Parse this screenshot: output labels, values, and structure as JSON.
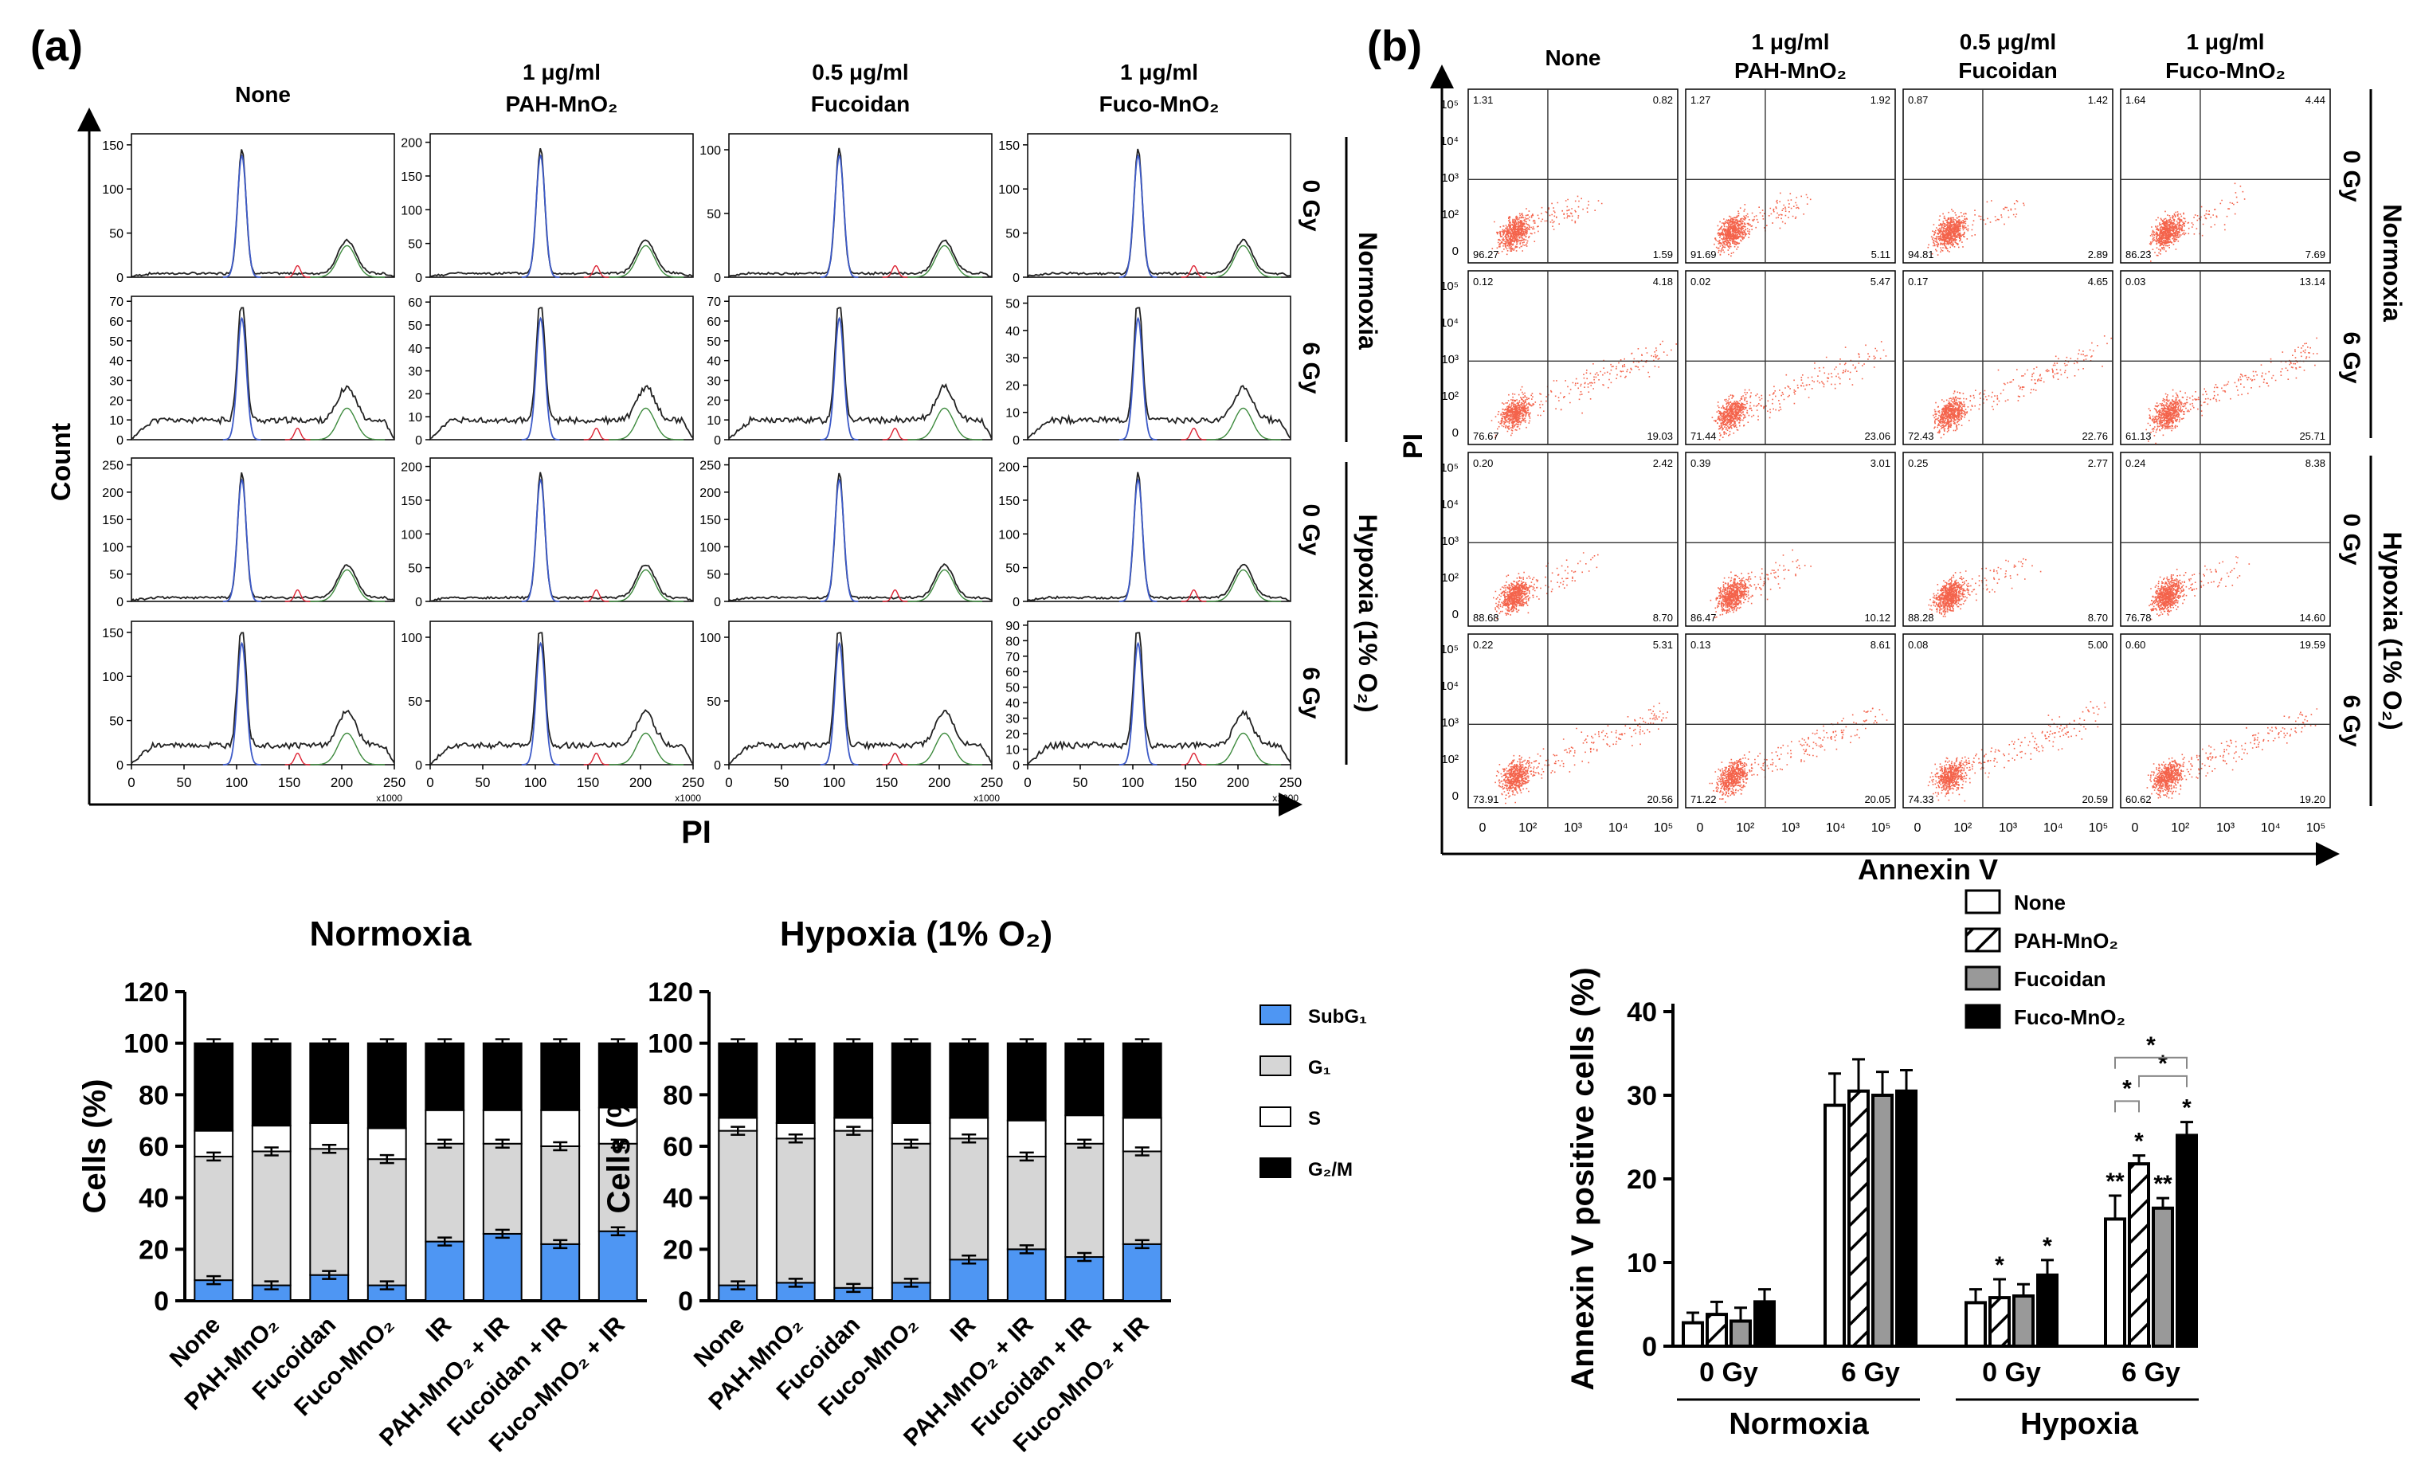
{
  "panel_a": {
    "label": "(a)",
    "columns": [
      {
        "line1": "None",
        "line2": ""
      },
      {
        "line1": "1 μg/ml",
        "line2": "PAH-MnO₂"
      },
      {
        "line1": "0.5 μg/ml",
        "line2": "Fucoidan"
      },
      {
        "line1": "1 μg/ml",
        "line2": "Fuco-MnO₂"
      }
    ],
    "rows": [
      "0 Gy",
      "6 Gy",
      "0 Gy",
      "6 Gy"
    ],
    "groups": [
      "Normoxia",
      "Hypoxia (1% O₂)"
    ],
    "ylabel": "Count",
    "xlabel": "PI",
    "x_ticks": [
      "0",
      "50",
      "100",
      "150",
      "200",
      "250"
    ],
    "x_multiplier": "x1000",
    "y_ticks": [
      [
        [
          "0",
          "50",
          "100",
          "150"
        ],
        [
          "0",
          "50",
          "100",
          "150",
          "200"
        ],
        [
          "0",
          "50",
          "100"
        ],
        [
          "0",
          "50",
          "100",
          "150"
        ]
      ],
      [
        [
          "0",
          "10",
          "20",
          "30",
          "40",
          "50",
          "60",
          "70"
        ],
        [
          "0",
          "10",
          "20",
          "30",
          "40",
          "50",
          "60"
        ],
        [
          "0",
          "10",
          "20",
          "30",
          "40",
          "50",
          "60",
          "70"
        ],
        [
          "0",
          "10",
          "20",
          "30",
          "40",
          "50"
        ]
      ],
      [
        [
          "0",
          "50",
          "100",
          "150",
          "200",
          "250"
        ],
        [
          "0",
          "50",
          "100",
          "150",
          "200"
        ],
        [
          "0",
          "50",
          "100",
          "150",
          "200",
          "250"
        ],
        [
          "0",
          "50",
          "100",
          "150",
          "200"
        ]
      ],
      [
        [
          "0",
          "50",
          "100",
          "150"
        ],
        [
          "0",
          "50",
          "100"
        ],
        [
          "0",
          "50",
          "100"
        ],
        [
          "0",
          "10",
          "20",
          "30",
          "40",
          "50",
          "60",
          "70",
          "80",
          "90"
        ]
      ]
    ]
  },
  "panel_b": {
    "label": "(b)",
    "columns": [
      {
        "line1": "None",
        "line2": ""
      },
      {
        "line1": "1 μg/ml",
        "line2": "PAH-MnO₂"
      },
      {
        "line1": "0.5 μg/ml",
        "line2": "Fucoidan"
      },
      {
        "line1": "1 μg/ml",
        "line2": "Fuco-MnO₂"
      }
    ],
    "rows": [
      "0 Gy",
      "6 Gy",
      "0 Gy",
      "6 Gy"
    ],
    "groups": [
      "Normoxia",
      "Hypoxia (1% O₂)"
    ],
    "ylabel": "PI",
    "xlabel": "Annexin V",
    "x_ticks": [
      "0",
      "10²",
      "10³",
      "10⁴",
      "10⁵"
    ],
    "y_ticks": [
      "10⁵",
      "10⁴",
      "10³",
      "10²",
      "0"
    ],
    "quadrants": [
      [
        [
          "1.31",
          "0.82",
          "96.27",
          "1.59"
        ],
        [
          "1.27",
          "1.92",
          "91.69",
          "5.11"
        ],
        [
          "0.87",
          "1.42",
          "94.81",
          "2.89"
        ],
        [
          "1.64",
          "4.44",
          "86.23",
          "7.69"
        ]
      ],
      [
        [
          "0.12",
          "4.18",
          "76.67",
          "19.03"
        ],
        [
          "0.02",
          "5.47",
          "71.44",
          "23.06"
        ],
        [
          "0.17",
          "4.65",
          "72.43",
          "22.76"
        ],
        [
          "0.03",
          "13.14",
          "61.13",
          "25.71"
        ]
      ],
      [
        [
          "0.20",
          "2.42",
          "88.68",
          "8.70"
        ],
        [
          "0.39",
          "3.01",
          "86.47",
          "10.12"
        ],
        [
          "0.25",
          "2.77",
          "88.28",
          "8.70"
        ],
        [
          "0.24",
          "8.38",
          "76.78",
          "14.60"
        ]
      ],
      [
        [
          "0.22",
          "5.31",
          "73.91",
          "20.56"
        ],
        [
          "0.13",
          "8.61",
          "71.22",
          "20.05"
        ],
        [
          "0.08",
          "5.00",
          "74.33",
          "20.59"
        ],
        [
          "0.60",
          "19.59",
          "60.62",
          "19.20"
        ]
      ]
    ]
  },
  "chart_data": [
    {
      "type": "bar",
      "stacked": true,
      "title": "Normoxia",
      "ylabel": "Cells (%)",
      "ylim": [
        0,
        120
      ],
      "y_ticks": [
        "0",
        "20",
        "40",
        "60",
        "80",
        "100",
        "120"
      ],
      "categories": [
        "None",
        "PAH-MnO₂",
        "Fucoidan",
        "Fuco-MnO₂",
        "IR",
        "PAH-MnO₂ + IR",
        "Fucoidan + IR",
        "Fuco-MnO₂ + IR"
      ],
      "series": [
        {
          "name": "SubG₁",
          "color": "#4e96f3",
          "values": [
            8,
            6,
            10,
            6,
            23,
            26,
            22,
            27
          ]
        },
        {
          "name": "G₁",
          "color": "#d6d6d6",
          "values": [
            48,
            52,
            49,
            49,
            38,
            35,
            38,
            34
          ]
        },
        {
          "name": "S",
          "color": "#ffffff",
          "values": [
            10,
            10,
            10,
            12,
            13,
            13,
            14,
            14
          ]
        },
        {
          "name": "G₂/M",
          "color": "#000000",
          "values": [
            34,
            32,
            31,
            33,
            26,
            26,
            26,
            25
          ]
        }
      ],
      "legend": [
        "SubG₁",
        "G₁",
        "S",
        "G₂/M"
      ]
    },
    {
      "type": "bar",
      "stacked": true,
      "title": "Hypoxia (1% O₂)",
      "ylabel": "Cells (%)",
      "ylim": [
        0,
        120
      ],
      "y_ticks": [
        "0",
        "20",
        "40",
        "60",
        "80",
        "100",
        "120"
      ],
      "categories": [
        "None",
        "PAH-MnO₂",
        "Fucoidan",
        "Fuco-MnO₂",
        "IR",
        "PAH-MnO₂ + IR",
        "Fucoidan + IR",
        "Fuco-MnO₂ + IR"
      ],
      "series": [
        {
          "name": "SubG₁",
          "color": "#4e96f3",
          "values": [
            6,
            7,
            5,
            7,
            16,
            20,
            17,
            22
          ]
        },
        {
          "name": "G₁",
          "color": "#d6d6d6",
          "values": [
            60,
            56,
            61,
            54,
            47,
            36,
            44,
            36
          ]
        },
        {
          "name": "S",
          "color": "#ffffff",
          "values": [
            5,
            6,
            5,
            8,
            8,
            14,
            11,
            13
          ]
        },
        {
          "name": "G₂/M",
          "color": "#000000",
          "values": [
            29,
            31,
            29,
            31,
            29,
            30,
            28,
            29
          ]
        }
      ]
    },
    {
      "type": "bar",
      "grouped": true,
      "ylabel": "Annexin V positive cells (%)",
      "ylim": [
        0,
        40
      ],
      "y_ticks": [
        "0",
        "10",
        "20",
        "30",
        "40"
      ],
      "categories": [
        "0 Gy",
        "6 Gy",
        "0 Gy",
        "6 Gy"
      ],
      "groups": [
        "Normoxia",
        "Hypoxia"
      ],
      "series": [
        {
          "name": "None",
          "fill": "white",
          "values": [
            2.8,
            28.8,
            5.2,
            15.2
          ],
          "errors": [
            1.2,
            3.8,
            1.6,
            2.8
          ]
        },
        {
          "name": "PAH-MnO₂",
          "fill": "hatch",
          "values": [
            3.8,
            30.5,
            5.8,
            21.8
          ],
          "errors": [
            1.5,
            3.8,
            2.2,
            1.0
          ]
        },
        {
          "name": "Fucoidan",
          "fill": "#999999",
          "values": [
            3.0,
            30.0,
            6.0,
            16.5
          ],
          "errors": [
            1.6,
            2.8,
            1.4,
            1.2
          ]
        },
        {
          "name": "Fuco-MnO₂",
          "fill": "#000000",
          "values": [
            5.3,
            30.5,
            8.5,
            25.2
          ],
          "errors": [
            1.5,
            2.5,
            1.8,
            1.6
          ]
        }
      ],
      "significance": [
        {
          "category": 2,
          "series": 1,
          "text": "*"
        },
        {
          "category": 2,
          "series": 3,
          "text": "*"
        },
        {
          "category": 3,
          "series": 0,
          "text": "**"
        },
        {
          "category": 3,
          "series": 1,
          "text": "*"
        },
        {
          "category": 3,
          "series": 2,
          "text": "**"
        },
        {
          "category": 3,
          "series": 3,
          "text": "*"
        }
      ],
      "brackets": [
        "*",
        "*",
        "*"
      ]
    }
  ]
}
